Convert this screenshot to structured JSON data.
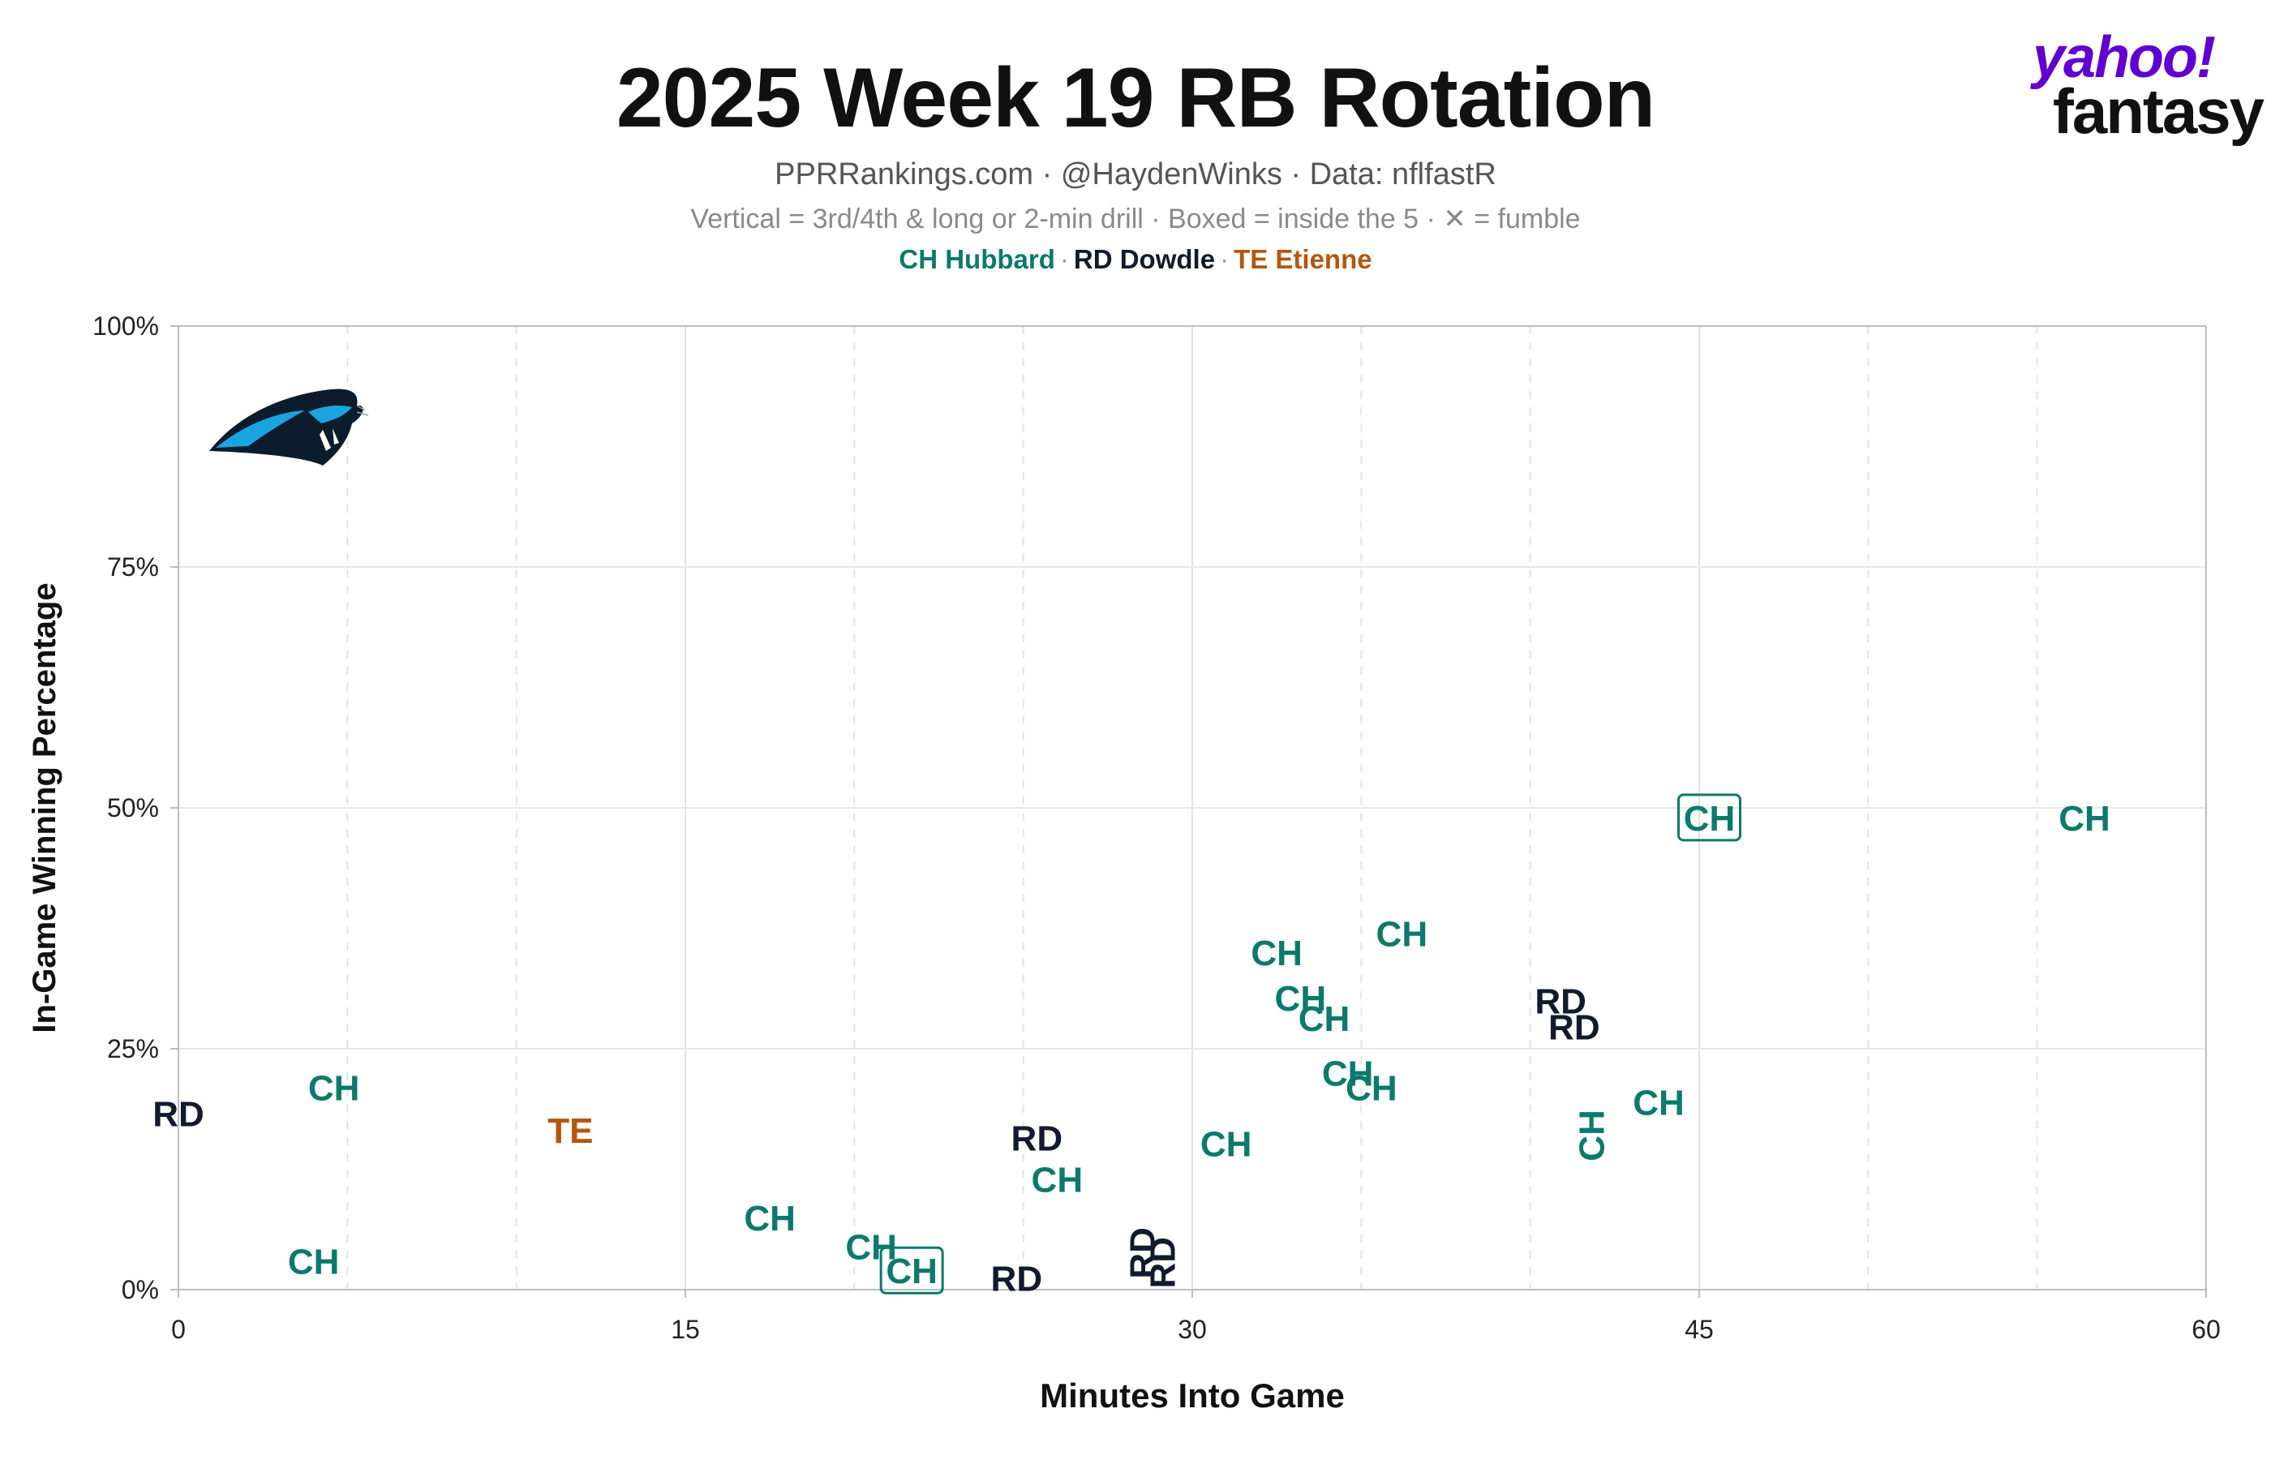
{
  "header": {
    "title": "2025 Week 19 RB Rotation",
    "subtitle": "PPRRankings.com · @HaydenWinks · Data: nflfastR",
    "note": "Vertical = 3rd/4th & long or 2-min drill · Boxed = inside the 5 · ✕ = fumble"
  },
  "legend": [
    {
      "label": "CH Hubbard",
      "color": "#0b7a6b"
    },
    {
      "label": "RD Dowdle",
      "color": "#121a2e"
    },
    {
      "label": "TE Etienne",
      "color": "#b5560c"
    }
  ],
  "logo": {
    "line1": "yahoo!",
    "line2": "fantasy",
    "color": "#6001d2"
  },
  "team_logo": {
    "icon": "panthers-logo-icon"
  },
  "chart_data": {
    "type": "scatter",
    "xlabel": "Minutes Into Game",
    "ylabel": "In-Game Winning Percentage",
    "xlim": [
      0,
      60
    ],
    "ylim": [
      0,
      100
    ],
    "xticks": [
      "0",
      "15",
      "30",
      "45",
      "60"
    ],
    "yticks": [
      "0%",
      "25%",
      "50%",
      "75%",
      "100%"
    ],
    "grid": true,
    "series": [
      {
        "name": "CH Hubbard",
        "code": "CH",
        "color": "#0b7a6b",
        "points": [
          {
            "x": 4.6,
            "y": 21
          },
          {
            "x": 4.0,
            "y": 3
          },
          {
            "x": 17.5,
            "y": 7.5
          },
          {
            "x": 20.5,
            "y": 4.5
          },
          {
            "x": 21.7,
            "y": 2,
            "boxed": true
          },
          {
            "x": 26.0,
            "y": 11.5
          },
          {
            "x": 31.0,
            "y": 15.2
          },
          {
            "x": 32.5,
            "y": 35
          },
          {
            "x": 33.2,
            "y": 30.3
          },
          {
            "x": 33.9,
            "y": 28.2
          },
          {
            "x": 34.6,
            "y": 22.5
          },
          {
            "x": 35.3,
            "y": 21
          },
          {
            "x": 36.2,
            "y": 37
          },
          {
            "x": 41.8,
            "y": 16,
            "vertical": true
          },
          {
            "x": 43.8,
            "y": 19.5
          },
          {
            "x": 45.3,
            "y": 49,
            "boxed": true
          },
          {
            "x": 56.4,
            "y": 49
          }
        ]
      },
      {
        "name": "RD Dowdle",
        "code": "RD",
        "color": "#121a2e",
        "points": [
          {
            "x": 0.0,
            "y": 18.3
          },
          {
            "x": 25.4,
            "y": 15.8
          },
          {
            "x": 24.8,
            "y": 1.2
          },
          {
            "x": 28.5,
            "y": 3.8,
            "vertical": true
          },
          {
            "x": 29.1,
            "y": 2.8,
            "vertical": true
          },
          {
            "x": 40.9,
            "y": 30
          },
          {
            "x": 41.3,
            "y": 27.3
          }
        ]
      },
      {
        "name": "TE Etienne",
        "code": "TE",
        "color": "#b5560c",
        "points": [
          {
            "x": 11.6,
            "y": 16.6
          }
        ]
      }
    ]
  }
}
